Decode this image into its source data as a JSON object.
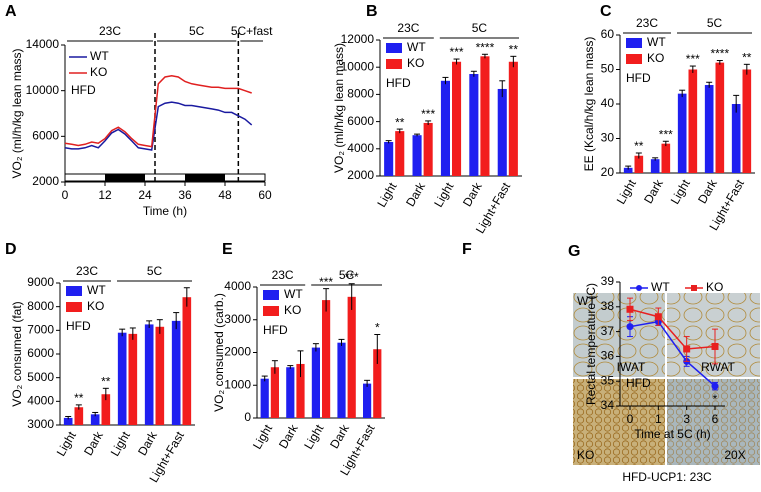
{
  "chart_data": [
    {
      "panel": "A",
      "type": "line",
      "x_label": "Time (h)",
      "y_label": "VO₂ (ml/h/kg lean mass)",
      "x": [
        0,
        2,
        4,
        6,
        8,
        10,
        12,
        14,
        16,
        18,
        20,
        22,
        24,
        26,
        28,
        30,
        32,
        34,
        36,
        38,
        40,
        42,
        44,
        46,
        48,
        50,
        52,
        54,
        56
      ],
      "xlim": [
        0,
        60
      ],
      "xticks": [
        0,
        12,
        24,
        36,
        48,
        60
      ],
      "ylim": [
        2000,
        14000
      ],
      "yticks": [
        2000,
        6000,
        10000,
        14000
      ],
      "series": [
        {
          "name": "WT",
          "color": "#1a1aa0",
          "values": [
            5000,
            4900,
            4900,
            5000,
            5200,
            5000,
            5600,
            6300,
            6600,
            6200,
            5600,
            5000,
            4900,
            4800,
            8600,
            8900,
            9000,
            8900,
            8700,
            8700,
            8600,
            8500,
            8400,
            8300,
            8100,
            8100,
            7800,
            7500,
            7000
          ]
        },
        {
          "name": "KO",
          "color": "#e02020",
          "values": [
            5400,
            5300,
            5200,
            5300,
            5500,
            5400,
            5800,
            6500,
            6800,
            6400,
            5800,
            5300,
            5200,
            5100,
            10600,
            11200,
            11300,
            11200,
            10800,
            10600,
            10500,
            10400,
            10300,
            10300,
            10200,
            10200,
            10200,
            10000,
            9800
          ]
        }
      ],
      "note": "HFD",
      "group_labels": [
        "23C",
        "5C",
        "5C+fast"
      ],
      "phase_boundaries": [
        27,
        52
      ],
      "dark_periods": [
        [
          12,
          24
        ],
        [
          36,
          48
        ]
      ]
    },
    {
      "panel": "B",
      "type": "bar",
      "y_label": "VO₂ (ml/h/kg lean mass)",
      "categories": [
        "Light",
        "Dark",
        "Light",
        "Dark",
        "Light+Fast"
      ],
      "ylim": [
        2000,
        12000
      ],
      "yticks": [
        2000,
        4000,
        6000,
        8000,
        10000,
        12000
      ],
      "series": [
        {
          "name": "WT",
          "color": "#1f1ff0",
          "values": [
            4500,
            5000,
            9000,
            9500,
            8400
          ],
          "errors": [
            100,
            80,
            250,
            200,
            600
          ]
        },
        {
          "name": "KO",
          "color": "#f21d1d",
          "values": [
            5300,
            5900,
            10400,
            10800,
            10400
          ],
          "errors": [
            150,
            150,
            200,
            150,
            400
          ]
        }
      ],
      "significance": [
        "**",
        "***",
        "***",
        "****",
        "**"
      ],
      "note": "HFD",
      "group_labels": [
        "23C",
        "5C"
      ]
    },
    {
      "panel": "C",
      "type": "bar",
      "y_label": "EE (Kcal/h/kg lean mass)",
      "categories": [
        "Light",
        "Dark",
        "Light",
        "Dark",
        "Light+Fast"
      ],
      "ylim": [
        20,
        60
      ],
      "yticks": [
        20,
        30,
        40,
        50,
        60
      ],
      "series": [
        {
          "name": "WT",
          "color": "#1f1ff0",
          "values": [
            21.5,
            24,
            43,
            45.5,
            40
          ],
          "errors": [
            0.5,
            0.4,
            1,
            0.8,
            2.5
          ]
        },
        {
          "name": "KO",
          "color": "#f21d1d",
          "values": [
            25,
            28.5,
            50,
            52,
            50
          ],
          "errors": [
            0.8,
            0.7,
            1,
            0.6,
            1.5
          ]
        }
      ],
      "significance": [
        "**",
        "***",
        "***",
        "****",
        "**"
      ],
      "note": "HFD",
      "group_labels": [
        "23C",
        "5C"
      ]
    },
    {
      "panel": "D",
      "type": "bar",
      "y_label": "VO₂ consumed (fat)",
      "categories": [
        "Light",
        "Dark",
        "Light",
        "Dark",
        "Light+Fast"
      ],
      "ylim": [
        3000,
        9000
      ],
      "yticks": [
        3000,
        4000,
        5000,
        6000,
        7000,
        8000,
        9000
      ],
      "series": [
        {
          "name": "WT",
          "color": "#1f1ff0",
          "values": [
            3300,
            3450,
            6900,
            7250,
            7400
          ],
          "errors": [
            60,
            80,
            150,
            150,
            350
          ]
        },
        {
          "name": "KO",
          "color": "#f21d1d",
          "values": [
            3750,
            4300,
            6850,
            7150,
            8400
          ],
          "errors": [
            100,
            250,
            250,
            300,
            400
          ]
        }
      ],
      "significance": [
        "**",
        "**",
        null,
        null,
        null
      ],
      "note": "HFD",
      "group_labels": [
        "23C",
        "5C"
      ]
    },
    {
      "panel": "E",
      "type": "bar",
      "y_label": "VO₂ consumed (carb.)",
      "categories": [
        "Light",
        "Dark",
        "Light",
        "Dark",
        "Light+Fast"
      ],
      "ylim": [
        0,
        4000
      ],
      "yticks": [
        0,
        1000,
        2000,
        3000,
        4000
      ],
      "series": [
        {
          "name": "WT",
          "color": "#1f1ff0",
          "values": [
            1200,
            1550,
            2150,
            2300,
            1050
          ],
          "errors": [
            80,
            50,
            120,
            100,
            100
          ]
        },
        {
          "name": "KO",
          "color": "#f21d1d",
          "values": [
            1550,
            1650,
            3600,
            3700,
            2100
          ],
          "errors": [
            200,
            400,
            350,
            400,
            450
          ]
        }
      ],
      "significance": [
        null,
        null,
        "***",
        "***",
        "*"
      ],
      "note": "HFD",
      "group_labels": [
        "23C",
        "5C"
      ]
    },
    {
      "panel": "F",
      "type": "line",
      "x_label": "Time at 5C (h)",
      "y_label": "Rectal temperature (C)",
      "categories": [
        "0",
        "1",
        "3",
        "6"
      ],
      "ylim": [
        34,
        39
      ],
      "yticks": [
        34,
        35,
        36,
        37,
        38,
        39
      ],
      "series": [
        {
          "name": "WT",
          "color": "#1f1ff0",
          "values": [
            37.2,
            37.4,
            35.8,
            34.8
          ],
          "errors": [
            0.4,
            0.15,
            0.2,
            0.15
          ]
        },
        {
          "name": "KO",
          "color": "#e82020",
          "values": [
            37.9,
            37.6,
            36.3,
            36.4
          ],
          "errors": [
            0.45,
            0.35,
            0.5,
            0.7
          ]
        }
      ],
      "significance": [
        null,
        null,
        null,
        "*"
      ],
      "note": "HFD"
    }
  ],
  "image_panel": {
    "panel": "G",
    "labels": [
      "WT",
      "IWAT",
      "RWAT",
      "KO",
      "20X"
    ],
    "caption": "HFD-UCP1: 23C"
  }
}
